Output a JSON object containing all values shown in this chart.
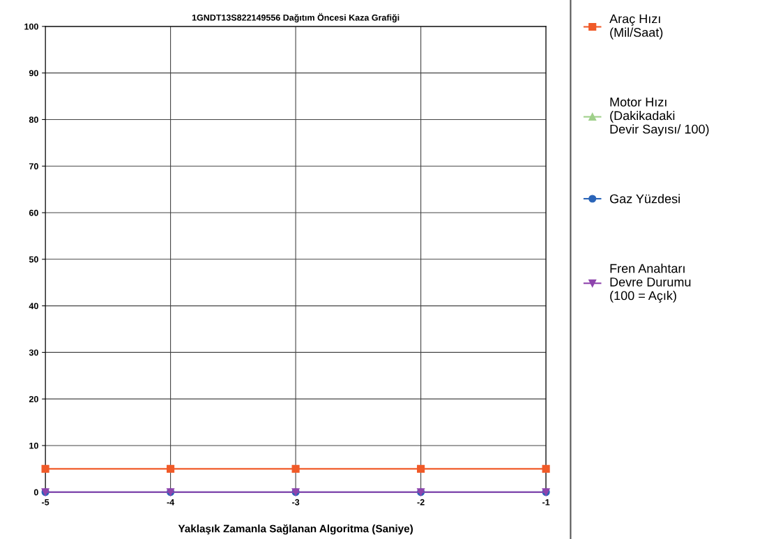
{
  "chart_data": {
    "type": "line",
    "title": "1GNDT13S822149556 Dağıtım Öncesi Kaza Grafiği",
    "xlabel": "Yaklaşık Zamanla Sağlanan Algoritma (Saniye)",
    "x": [
      -5,
      -4,
      -3,
      -2,
      -1
    ],
    "series": [
      {
        "name": "Araç Hızı\n(Mil/Saat)",
        "color": "#f05a28",
        "marker": "square",
        "values": [
          5,
          5,
          5,
          5,
          5
        ]
      },
      {
        "name": "Motor Hızı\n(Dakikadaki\nDevir Sayısı/ 100)",
        "color": "#9fd08a",
        "marker": "triangle",
        "values": [
          null,
          null,
          null,
          null,
          null
        ]
      },
      {
        "name": "Gaz Yüzdesi",
        "color": "#2a64b8",
        "marker": "circle",
        "values": [
          0,
          0,
          0,
          0,
          0
        ]
      },
      {
        "name": "Fren Anahtarı\nDevre Durumu\n(100 = Açık)",
        "color": "#8e44ad",
        "marker": "triangle_down",
        "values": [
          0,
          0,
          0,
          0,
          0
        ]
      }
    ],
    "xlim": [
      -5,
      -1
    ],
    "xticks": [
      -5,
      -4,
      -3,
      -2,
      -1
    ],
    "ylim": [
      0,
      100
    ],
    "yticks": [
      0,
      10,
      20,
      30,
      40,
      50,
      60,
      70,
      80,
      90,
      100
    ],
    "grid": true,
    "legend": "right",
    "line_style": "solid"
  }
}
